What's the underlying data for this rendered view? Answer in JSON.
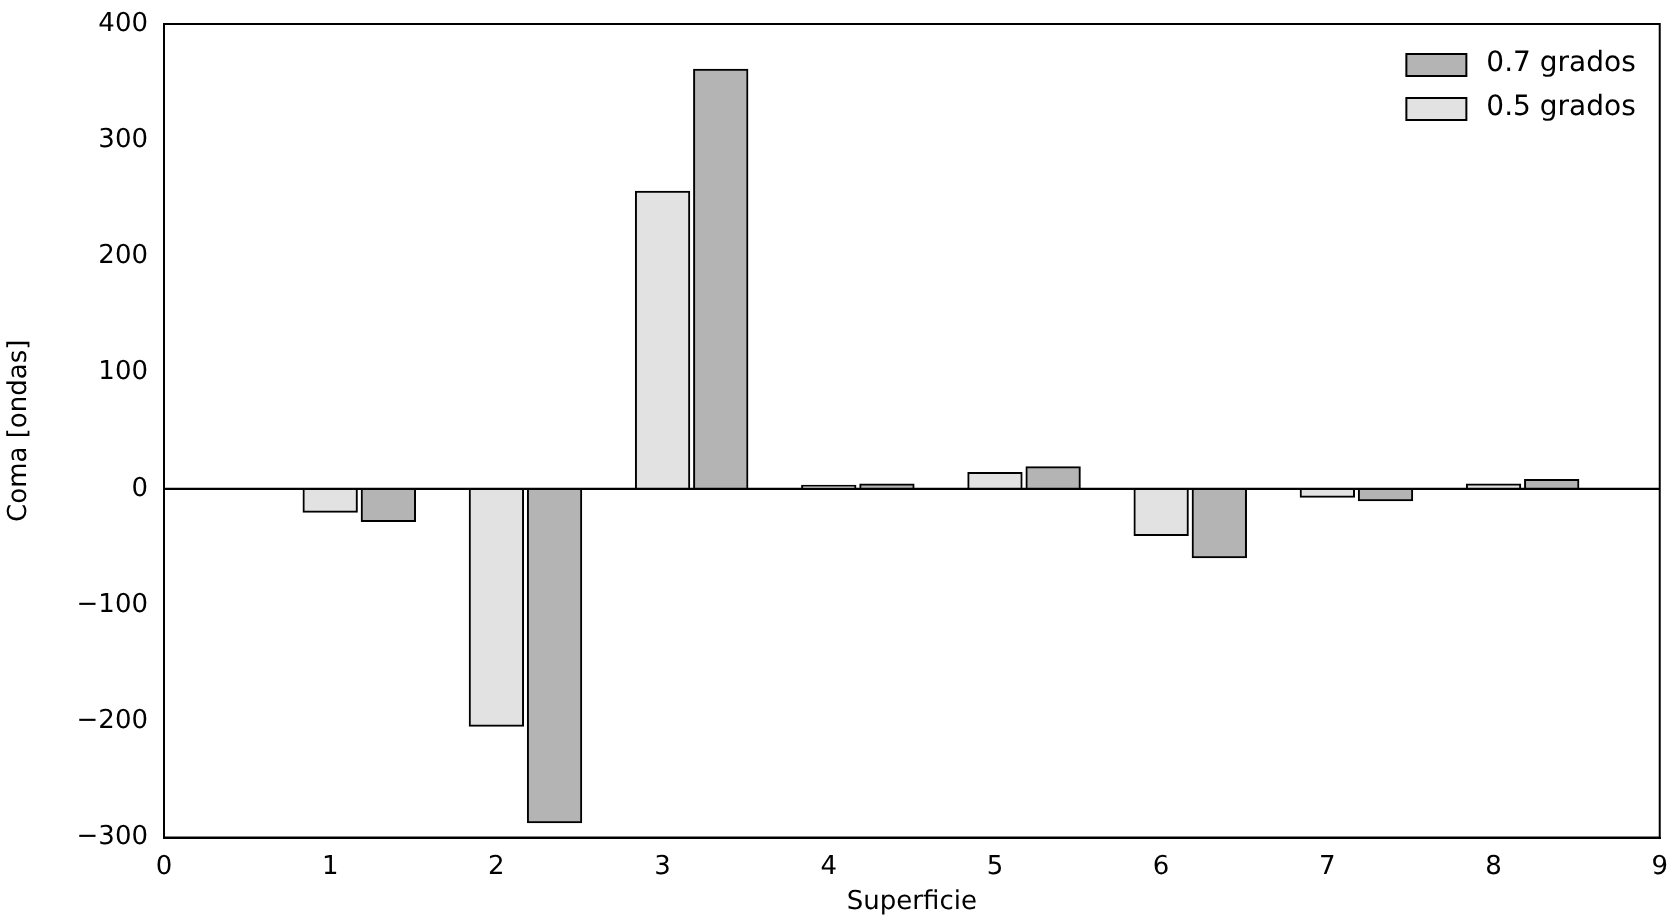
{
  "chart_data": {
    "type": "bar",
    "xlabel": "Superficie",
    "ylabel": "Coma [ondas]",
    "x": [
      1,
      2,
      3,
      4,
      5,
      6,
      7,
      8
    ],
    "series": [
      {
        "name": "0.7 grados",
        "color": "#b4b4b4",
        "values": [
          -28,
          -287,
          361,
          4,
          19,
          -59,
          -10,
          8
        ]
      },
      {
        "name": "0.5 grados",
        "color": "#e2e2e2",
        "values": [
          -20,
          -204,
          256,
          3,
          14,
          -40,
          -7,
          4
        ]
      }
    ],
    "xlim": [
      0,
      9
    ],
    "xticks": [
      0,
      1,
      2,
      3,
      4,
      5,
      6,
      7,
      8,
      9
    ],
    "ylim": [
      -300,
      400
    ],
    "yticks": [
      -300,
      -200,
      -100,
      0,
      100,
      200,
      300,
      400
    ],
    "ref_lines": [
      {
        "axis": "y",
        "value": 0,
        "color": "#000000"
      }
    ],
    "grid": false,
    "legend": "top right"
  }
}
